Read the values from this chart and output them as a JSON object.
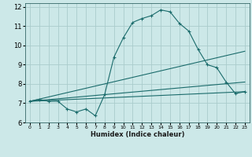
{
  "title": "",
  "xlabel": "Humidex (Indice chaleur)",
  "bg_color": "#cce8e8",
  "grid_color": "#aacccc",
  "line_color": "#1a6b6b",
  "xlim": [
    -0.5,
    23.5
  ],
  "ylim": [
    6,
    12.2
  ],
  "yticks": [
    6,
    7,
    8,
    9,
    10,
    11,
    12
  ],
  "xticks": [
    0,
    1,
    2,
    3,
    4,
    5,
    6,
    7,
    8,
    9,
    10,
    11,
    12,
    13,
    14,
    15,
    16,
    17,
    18,
    19,
    20,
    21,
    22,
    23
  ],
  "line1_x": [
    0,
    1,
    2,
    3,
    4,
    5,
    6,
    7,
    8,
    9,
    10,
    11,
    12,
    13,
    14,
    15,
    16,
    17,
    18,
    19,
    20,
    21,
    22,
    23
  ],
  "line1_y": [
    7.1,
    7.2,
    7.1,
    7.1,
    6.7,
    6.55,
    6.7,
    6.35,
    7.45,
    9.4,
    10.4,
    11.2,
    11.4,
    11.55,
    11.85,
    11.75,
    11.15,
    10.75,
    9.8,
    9.0,
    8.85,
    8.1,
    7.5,
    7.6
  ],
  "line2_x": [
    0,
    23
  ],
  "line2_y": [
    7.1,
    7.6
  ],
  "line3_x": [
    0,
    23
  ],
  "line3_y": [
    7.1,
    8.1
  ],
  "line4_x": [
    0,
    23
  ],
  "line4_y": [
    7.1,
    9.7
  ]
}
